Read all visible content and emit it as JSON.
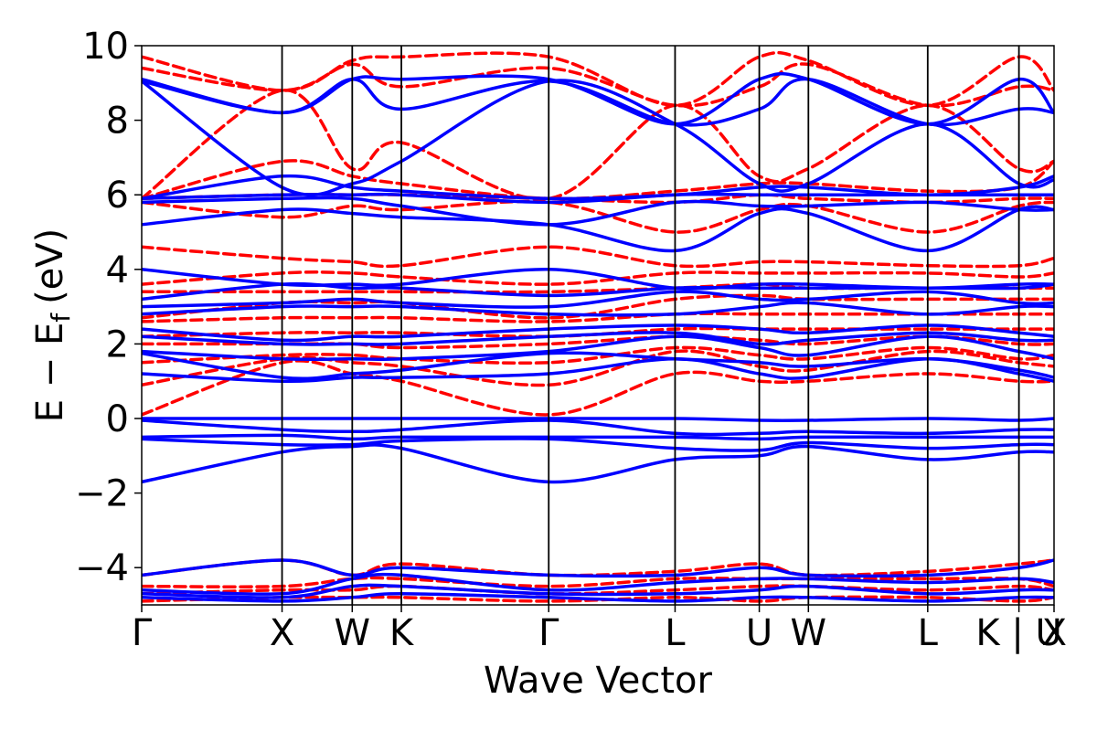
{
  "chart_data": {
    "type": "line",
    "title": "",
    "xlabel": "Wave Vector",
    "ylabel": "E − E",
    "ylabel_sub": "f",
    "ylabel_unit": "(eV)",
    "ylim": [
      -5,
      10
    ],
    "yticks": [
      -4,
      -2,
      0,
      2,
      4,
      6,
      8,
      10
    ],
    "ytick_labels": [
      "−4",
      "−2",
      "0",
      "2",
      "4",
      "6",
      "8",
      "10"
    ],
    "xlim": [
      0,
      13
    ],
    "kpoints": [
      {
        "label": "Γ",
        "x": 0
      },
      {
        "label": "X",
        "x": 2
      },
      {
        "label": "W",
        "x": 3
      },
      {
        "label": "K",
        "x": 3.7
      },
      {
        "label": "Γ",
        "x": 5.8
      },
      {
        "label": "L",
        "x": 7.6
      },
      {
        "label": "U",
        "x": 8.8
      },
      {
        "label": "W",
        "x": 9.5
      },
      {
        "label": "L",
        "x": 11.2
      },
      {
        "label": "K | U",
        "x": 12.5
      },
      {
        "label": "X",
        "x": 13
      }
    ],
    "grid": false,
    "legend": "none",
    "colors": {
      "solid": "#0000ff",
      "dashed": "#ff0000"
    },
    "x": [
      0,
      2,
      3,
      3.7,
      5.8,
      7.6,
      8.8,
      9.5,
      11.2,
      12.5,
      13
    ],
    "series": [
      {
        "style": "solid",
        "values": [
          -1.7,
          -0.9,
          -0.75,
          -0.8,
          -1.7,
          -1.1,
          -1.0,
          -0.75,
          -1.1,
          -0.9,
          -0.9
        ]
      },
      {
        "style": "solid",
        "values": [
          -0.55,
          -0.7,
          -0.7,
          -0.6,
          -0.55,
          -0.8,
          -0.85,
          -0.65,
          -0.8,
          -0.7,
          -0.7
        ]
      },
      {
        "style": "solid",
        "values": [
          -0.5,
          -0.45,
          -0.55,
          -0.5,
          -0.5,
          -0.5,
          -0.55,
          -0.5,
          -0.5,
          -0.5,
          -0.5
        ]
      },
      {
        "style": "solid",
        "values": [
          -0.05,
          -0.3,
          -0.35,
          -0.3,
          -0.05,
          -0.4,
          -0.4,
          -0.35,
          -0.4,
          -0.3,
          -0.3
        ]
      },
      {
        "style": "solid",
        "values": [
          0.0,
          0.0,
          0.0,
          0.0,
          0.0,
          0.0,
          -0.05,
          -0.05,
          0.0,
          -0.05,
          0.0
        ]
      },
      {
        "style": "solid",
        "values": [
          1.2,
          1.0,
          1.1,
          1.1,
          1.2,
          1.6,
          1.2,
          1.1,
          1.6,
          1.2,
          1.0
        ]
      },
      {
        "style": "solid",
        "values": [
          1.75,
          1.1,
          1.2,
          1.3,
          1.75,
          1.6,
          1.5,
          1.4,
          1.6,
          1.3,
          1.1
        ]
      },
      {
        "style": "solid",
        "values": [
          1.8,
          1.6,
          1.6,
          1.6,
          1.8,
          2.2,
          1.9,
          1.7,
          2.2,
          1.8,
          1.6
        ]
      },
      {
        "style": "solid",
        "values": [
          2.2,
          2.0,
          2.0,
          2.0,
          2.2,
          2.3,
          2.0,
          2.1,
          2.3,
          2.1,
          2.1
        ]
      },
      {
        "style": "solid",
        "values": [
          2.4,
          2.1,
          2.2,
          2.2,
          2.4,
          2.5,
          2.4,
          2.3,
          2.5,
          2.3,
          2.2
        ]
      },
      {
        "style": "solid",
        "values": [
          2.8,
          3.0,
          3.0,
          3.0,
          2.8,
          2.8,
          3.0,
          3.1,
          2.8,
          3.0,
          3.0
        ]
      },
      {
        "style": "solid",
        "values": [
          3.0,
          3.1,
          3.2,
          3.1,
          3.0,
          3.4,
          3.2,
          3.2,
          3.4,
          3.1,
          3.1
        ]
      },
      {
        "style": "solid",
        "values": [
          3.2,
          3.6,
          3.5,
          3.5,
          3.3,
          3.5,
          3.5,
          3.5,
          3.5,
          3.5,
          3.6
        ]
      },
      {
        "style": "solid",
        "values": [
          4.0,
          3.6,
          3.6,
          3.6,
          4.0,
          3.5,
          3.6,
          3.6,
          3.5,
          3.6,
          3.6
        ]
      },
      {
        "style": "solid",
        "values": [
          5.2,
          5.6,
          5.5,
          5.4,
          5.2,
          4.5,
          5.5,
          5.5,
          4.5,
          5.6,
          5.6
        ]
      },
      {
        "style": "solid",
        "values": [
          5.8,
          5.9,
          5.9,
          5.7,
          5.2,
          5.8,
          5.7,
          5.7,
          5.8,
          5.6,
          5.6
        ]
      },
      {
        "style": "solid",
        "values": [
          5.9,
          6.0,
          6.0,
          6.0,
          5.8,
          6.0,
          6.0,
          6.0,
          6.0,
          6.0,
          6.0
        ]
      },
      {
        "style": "solid",
        "values": [
          5.9,
          6.5,
          6.2,
          6.1,
          5.9,
          6.0,
          6.2,
          6.2,
          6.0,
          6.2,
          6.5
        ]
      },
      {
        "style": "solid",
        "values": [
          9.05,
          6.2,
          6.3,
          6.9,
          9.05,
          7.9,
          6.3,
          6.3,
          7.9,
          6.3,
          6.4
        ]
      },
      {
        "style": "solid",
        "values": [
          9.05,
          8.2,
          9.1,
          8.3,
          9.05,
          7.9,
          8.3,
          9.1,
          7.9,
          8.3,
          8.2
        ]
      },
      {
        "style": "solid",
        "values": [
          9.1,
          8.2,
          9.1,
          9.1,
          9.1,
          7.9,
          9.1,
          9.1,
          7.9,
          9.1,
          8.2
        ]
      },
      {
        "style": "solid",
        "values": [
          -4.2,
          -3.8,
          -4.2,
          -4.0,
          -4.2,
          -4.2,
          -4.0,
          -4.2,
          -4.2,
          -4.0,
          -3.8
        ]
      },
      {
        "style": "solid",
        "values": [
          -4.6,
          -4.7,
          -4.3,
          -4.2,
          -4.6,
          -4.4,
          -4.3,
          -4.3,
          -4.4,
          -4.3,
          -4.4
        ]
      },
      {
        "style": "solid",
        "values": [
          -4.7,
          -4.8,
          -4.5,
          -4.5,
          -4.7,
          -4.7,
          -4.6,
          -4.5,
          -4.7,
          -4.6,
          -4.6
        ]
      },
      {
        "style": "solid",
        "values": [
          -4.8,
          -4.9,
          -4.8,
          -4.7,
          -4.8,
          -4.9,
          -4.8,
          -4.8,
          -4.9,
          -4.8,
          -4.8
        ]
      },
      {
        "style": "dashed",
        "values": [
          0.1,
          1.5,
          1.2,
          1.0,
          0.1,
          1.2,
          1.0,
          1.0,
          1.2,
          1.0,
          1.0
        ]
      },
      {
        "style": "dashed",
        "values": [
          0.9,
          1.6,
          1.5,
          1.4,
          0.9,
          1.8,
          1.4,
          1.3,
          1.8,
          1.5,
          1.4
        ]
      },
      {
        "style": "dashed",
        "values": [
          1.5,
          1.7,
          1.7,
          1.6,
          1.5,
          1.9,
          1.7,
          1.6,
          1.9,
          1.6,
          1.7
        ]
      },
      {
        "style": "dashed",
        "values": [
          2.0,
          2.0,
          2.0,
          1.9,
          2.0,
          2.2,
          2.1,
          2.0,
          2.2,
          2.0,
          2.0
        ]
      },
      {
        "style": "dashed",
        "values": [
          2.2,
          2.3,
          2.3,
          2.3,
          2.2,
          2.4,
          2.4,
          2.4,
          2.4,
          2.4,
          2.4
        ]
      },
      {
        "style": "dashed",
        "values": [
          2.6,
          2.7,
          2.7,
          2.7,
          2.6,
          2.8,
          2.8,
          2.8,
          2.8,
          2.8,
          2.8
        ]
      },
      {
        "style": "dashed",
        "values": [
          2.7,
          3.1,
          3.1,
          3.1,
          2.7,
          3.2,
          3.3,
          3.2,
          3.2,
          3.2,
          3.2
        ]
      },
      {
        "style": "dashed",
        "values": [
          3.4,
          3.4,
          3.4,
          3.4,
          3.4,
          3.5,
          3.6,
          3.5,
          3.5,
          3.5,
          3.5
        ]
      },
      {
        "style": "dashed",
        "values": [
          3.6,
          3.9,
          3.9,
          3.8,
          3.6,
          3.9,
          3.9,
          3.9,
          3.9,
          3.8,
          3.9
        ]
      },
      {
        "style": "dashed",
        "values": [
          4.6,
          4.3,
          4.2,
          4.1,
          4.6,
          4.1,
          4.2,
          4.2,
          4.1,
          4.1,
          4.3
        ]
      },
      {
        "style": "dashed",
        "values": [
          5.8,
          5.4,
          5.7,
          5.6,
          5.8,
          5.0,
          5.6,
          5.7,
          5.0,
          5.7,
          5.8
        ]
      },
      {
        "style": "dashed",
        "values": [
          5.9,
          6.0,
          6.0,
          6.0,
          5.9,
          5.8,
          6.0,
          5.9,
          5.8,
          5.9,
          5.9
        ]
      },
      {
        "style": "dashed",
        "values": [
          5.9,
          6.9,
          6.5,
          6.3,
          5.9,
          6.1,
          6.3,
          6.3,
          6.1,
          6.2,
          6.9
        ]
      },
      {
        "style": "dashed",
        "values": [
          5.9,
          8.8,
          6.7,
          7.4,
          5.9,
          8.4,
          6.5,
          6.7,
          8.4,
          6.7,
          6.9
        ]
      },
      {
        "style": "dashed",
        "values": [
          9.4,
          8.8,
          9.5,
          8.9,
          9.4,
          8.4,
          8.9,
          9.5,
          8.4,
          8.9,
          8.8
        ]
      },
      {
        "style": "dashed",
        "values": [
          9.7,
          8.8,
          9.6,
          9.7,
          9.7,
          8.4,
          9.7,
          9.6,
          8.4,
          9.7,
          8.8
        ]
      },
      {
        "style": "dashed",
        "values": [
          -4.2,
          -3.8,
          -4.2,
          -3.9,
          -4.2,
          -4.1,
          -3.9,
          -4.2,
          -4.1,
          -3.9,
          -3.8
        ]
      },
      {
        "style": "dashed",
        "values": [
          -4.5,
          -4.5,
          -4.3,
          -4.3,
          -4.5,
          -4.3,
          -4.3,
          -4.3,
          -4.3,
          -4.3,
          -4.5
        ]
      },
      {
        "style": "dashed",
        "values": [
          -4.7,
          -4.6,
          -4.6,
          -4.5,
          -4.7,
          -4.6,
          -4.5,
          -4.5,
          -4.6,
          -4.5,
          -4.6
        ]
      },
      {
        "style": "dashed",
        "values": [
          -4.9,
          -4.8,
          -4.8,
          -4.8,
          -4.9,
          -4.8,
          -4.9,
          -4.8,
          -4.8,
          -4.9,
          -4.8
        ]
      }
    ]
  }
}
